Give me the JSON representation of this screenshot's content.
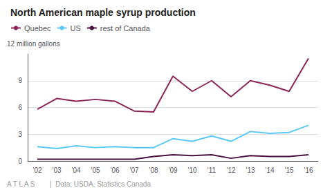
{
  "chart_data": {
    "type": "line",
    "title": "North American maple syrup production",
    "ylabel": "12 million gallons",
    "annotations": [
      "A T L A S",
      "|  Data: USDA, Statistics Canada"
    ],
    "categories": [
      "'02",
      "'03",
      "'04",
      "'05",
      "'06",
      "'07",
      "'08",
      "'09",
      "'10",
      "'11",
      "'12",
      "'13",
      "'14",
      "'15",
      "'16"
    ],
    "series": [
      {
        "name": "Quebec",
        "color": "#8B2558",
        "values": [
          5.8,
          7.0,
          6.7,
          6.9,
          6.7,
          5.6,
          5.5,
          9.5,
          7.8,
          9.0,
          7.2,
          9.0,
          8.5,
          7.8,
          11.5
        ]
      },
      {
        "name": "US",
        "color": "#5BC8F5",
        "values": [
          1.6,
          1.4,
          1.7,
          1.5,
          1.6,
          1.5,
          1.5,
          2.5,
          2.2,
          2.8,
          2.2,
          3.3,
          3.1,
          3.2,
          4.0
        ]
      },
      {
        "name": "rest of Canada",
        "color": "#4A1040",
        "values": [
          0.2,
          0.2,
          0.2,
          0.2,
          0.2,
          0.2,
          0.5,
          0.7,
          0.6,
          0.7,
          0.3,
          0.6,
          0.5,
          0.5,
          0.7
        ]
      }
    ],
    "ylim": [
      0,
      12
    ],
    "yticks": [
      0,
      3,
      6,
      9
    ],
    "grid": true,
    "legend": "top"
  }
}
